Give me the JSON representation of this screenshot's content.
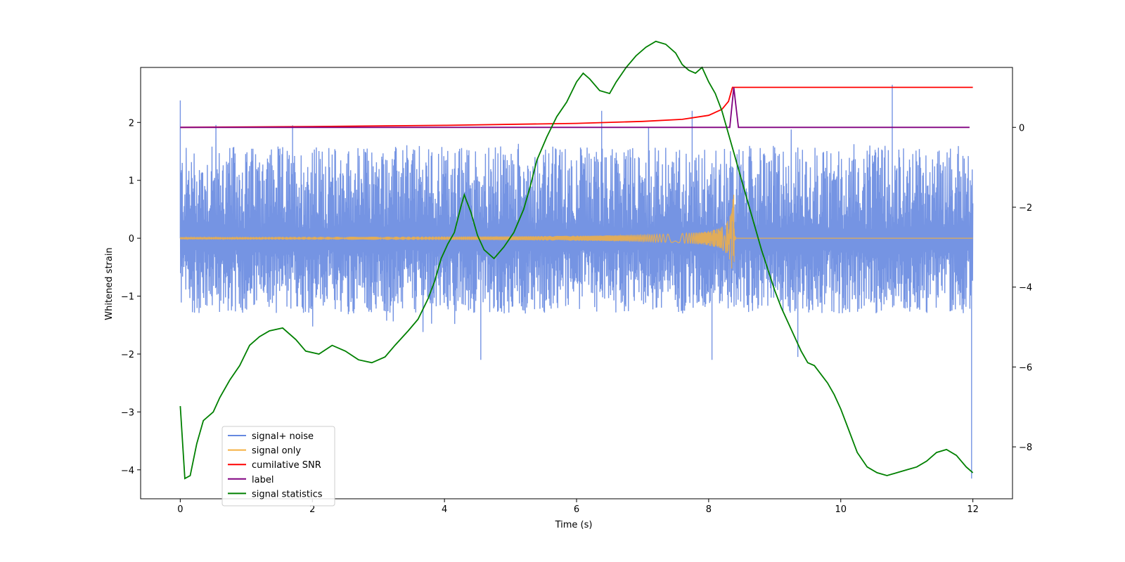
{
  "chart_data": {
    "type": "line",
    "xlabel": "Time (s)",
    "ylabel": "Whitened strain",
    "xlim": [
      -0.6,
      12.6
    ],
    "ylim": [
      -4.5,
      2.95
    ],
    "y2lim": [
      -9.3,
      1.5
    ],
    "x_ticks": [
      0,
      2,
      4,
      6,
      8,
      10,
      12
    ],
    "y_ticks": [
      -4,
      -3,
      -2,
      -1,
      0,
      1,
      2
    ],
    "y2_ticks": [
      -8,
      -6,
      -4,
      -2,
      0
    ],
    "legend_position": "lower-left",
    "series": [
      {
        "name": "signal+ noise",
        "axis": "left",
        "color": "#6688e0",
        "kind": "noise",
        "x_range": [
          0,
          12
        ],
        "typical_amplitude": [
          -1.3,
          1.6
        ],
        "spikes": [
          {
            "x": 0.0,
            "y": 2.38
          },
          {
            "x": 1.7,
            "y": 1.95
          },
          {
            "x": 6.38,
            "y": 2.2
          },
          {
            "x": 7.75,
            "y": 2.2
          },
          {
            "x": 10.78,
            "y": 2.65
          },
          {
            "x": 11.98,
            "y": -4.15
          },
          {
            "x": 11.98,
            "y": 0.6
          },
          {
            "x": 4.55,
            "y": -2.1
          },
          {
            "x": 8.05,
            "y": -2.1
          },
          {
            "x": 9.35,
            "y": -2.05
          }
        ]
      },
      {
        "name": "signal only",
        "axis": "left",
        "color": "#f5b041",
        "kind": "chirp",
        "merger_time": 8.38,
        "peak_amplitude": 0.75
      },
      {
        "name": "cumilative SNR",
        "axis": "right",
        "color": "#ff0000",
        "points": [
          [
            0,
            0
          ],
          [
            2,
            0.02
          ],
          [
            4,
            0.05
          ],
          [
            6,
            0.1
          ],
          [
            7,
            0.15
          ],
          [
            7.6,
            0.2
          ],
          [
            8.0,
            0.3
          ],
          [
            8.2,
            0.45
          ],
          [
            8.3,
            0.65
          ],
          [
            8.36,
            1.0
          ],
          [
            8.38,
            1.0
          ],
          [
            12,
            1.0
          ]
        ]
      },
      {
        "name": "label",
        "axis": "right",
        "color": "#800080",
        "points": [
          [
            0,
            0
          ],
          [
            8.32,
            0
          ],
          [
            8.38,
            1.0
          ],
          [
            8.45,
            0
          ],
          [
            11.95,
            0
          ]
        ]
      },
      {
        "name": "signal statistics",
        "axis": "left",
        "color": "#008000",
        "points": [
          [
            0,
            -2.9
          ],
          [
            0.07,
            -4.15
          ],
          [
            0.15,
            -4.1
          ],
          [
            0.25,
            -3.55
          ],
          [
            0.35,
            -3.15
          ],
          [
            0.5,
            -3.0
          ],
          [
            0.6,
            -2.75
          ],
          [
            0.75,
            -2.45
          ],
          [
            0.9,
            -2.2
          ],
          [
            1.05,
            -1.85
          ],
          [
            1.2,
            -1.7
          ],
          [
            1.35,
            -1.6
          ],
          [
            1.55,
            -1.55
          ],
          [
            1.75,
            -1.75
          ],
          [
            1.9,
            -1.95
          ],
          [
            2.1,
            -2.0
          ],
          [
            2.3,
            -1.85
          ],
          [
            2.5,
            -1.95
          ],
          [
            2.7,
            -2.1
          ],
          [
            2.9,
            -2.15
          ],
          [
            3.1,
            -2.05
          ],
          [
            3.25,
            -1.85
          ],
          [
            3.45,
            -1.6
          ],
          [
            3.6,
            -1.4
          ],
          [
            3.75,
            -1.05
          ],
          [
            3.85,
            -0.75
          ],
          [
            3.95,
            -0.35
          ],
          [
            4.05,
            -0.1
          ],
          [
            4.15,
            0.1
          ],
          [
            4.25,
            0.55
          ],
          [
            4.3,
            0.75
          ],
          [
            4.4,
            0.45
          ],
          [
            4.5,
            0.05
          ],
          [
            4.6,
            -0.2
          ],
          [
            4.75,
            -0.35
          ],
          [
            4.9,
            -0.15
          ],
          [
            5.05,
            0.1
          ],
          [
            5.2,
            0.5
          ],
          [
            5.3,
            0.9
          ],
          [
            5.4,
            1.35
          ],
          [
            5.55,
            1.75
          ],
          [
            5.7,
            2.1
          ],
          [
            5.85,
            2.35
          ],
          [
            6.0,
            2.7
          ],
          [
            6.1,
            2.85
          ],
          [
            6.2,
            2.75
          ],
          [
            6.35,
            2.55
          ],
          [
            6.5,
            2.5
          ],
          [
            6.6,
            2.7
          ],
          [
            6.75,
            2.95
          ],
          [
            6.9,
            3.15
          ],
          [
            7.05,
            3.3
          ],
          [
            7.2,
            3.4
          ],
          [
            7.35,
            3.35
          ],
          [
            7.5,
            3.2
          ],
          [
            7.6,
            3.0
          ],
          [
            7.7,
            2.9
          ],
          [
            7.8,
            2.85
          ],
          [
            7.9,
            2.95
          ],
          [
            8.0,
            2.7
          ],
          [
            8.1,
            2.5
          ],
          [
            8.2,
            2.2
          ],
          [
            8.3,
            1.8
          ],
          [
            8.4,
            1.4
          ],
          [
            8.5,
            1.0
          ],
          [
            8.6,
            0.6
          ],
          [
            8.7,
            0.2
          ],
          [
            8.8,
            -0.2
          ],
          [
            8.9,
            -0.55
          ],
          [
            9.0,
            -0.9
          ],
          [
            9.1,
            -1.2
          ],
          [
            9.2,
            -1.45
          ],
          [
            9.3,
            -1.7
          ],
          [
            9.4,
            -1.95
          ],
          [
            9.5,
            -2.15
          ],
          [
            9.6,
            -2.2
          ],
          [
            9.7,
            -2.35
          ],
          [
            9.8,
            -2.5
          ],
          [
            9.9,
            -2.7
          ],
          [
            10.0,
            -2.95
          ],
          [
            10.1,
            -3.25
          ],
          [
            10.25,
            -3.7
          ],
          [
            10.4,
            -3.95
          ],
          [
            10.55,
            -4.05
          ],
          [
            10.7,
            -4.1
          ],
          [
            10.85,
            -4.05
          ],
          [
            11.0,
            -4.0
          ],
          [
            11.15,
            -3.95
          ],
          [
            11.3,
            -3.85
          ],
          [
            11.45,
            -3.7
          ],
          [
            11.6,
            -3.65
          ],
          [
            11.75,
            -3.75
          ],
          [
            11.9,
            -3.95
          ],
          [
            12.0,
            -4.05
          ]
        ]
      }
    ]
  }
}
